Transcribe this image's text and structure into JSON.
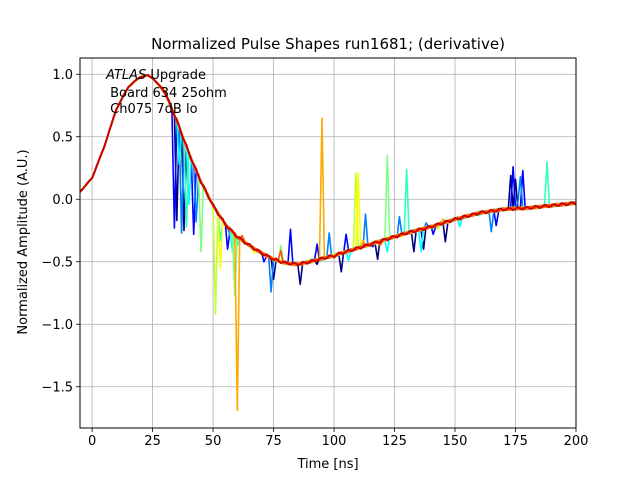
{
  "chart_data": {
    "type": "line",
    "title": "Normalized Pulse Shapes run1681; (derivative)",
    "xlabel": "Time [ns]",
    "ylabel": "Normalized Amplitude (A.U.)",
    "xlim": [
      -5,
      200
    ],
    "ylim": [
      -1.83,
      1.13
    ],
    "xticks": [
      0,
      25,
      50,
      75,
      100,
      125,
      150,
      175,
      200
    ],
    "yticks": [
      -1.5,
      -1.0,
      -0.5,
      0.0,
      0.5,
      1.0
    ],
    "xtick_labels": [
      "0",
      "25",
      "50",
      "75",
      "100",
      "125",
      "150",
      "175",
      "200"
    ],
    "ytick_labels": [
      "−1.5",
      "−1.0",
      "−0.5",
      "0.0",
      "0.5",
      "1.0"
    ],
    "grid": true,
    "annotation": {
      "line1_italic": "ATLAS",
      "line1_rest": " Upgrade",
      "line2": " Board 634 25ohm",
      "line3": " Ch075 7dB lo"
    },
    "base_shape": {
      "x": [
        -5,
        0,
        5,
        10,
        15,
        20,
        23,
        25,
        30,
        35,
        40,
        45,
        50,
        55,
        60,
        65,
        70,
        75,
        80,
        85,
        90,
        100,
        110,
        120,
        130,
        140,
        150,
        160,
        170,
        180,
        190,
        200
      ],
      "y": [
        0.06,
        0.17,
        0.42,
        0.72,
        0.9,
        0.98,
        0.99,
        0.97,
        0.86,
        0.63,
        0.37,
        0.14,
        -0.05,
        -0.2,
        -0.3,
        -0.37,
        -0.43,
        -0.48,
        -0.51,
        -0.52,
        -0.5,
        -0.45,
        -0.39,
        -0.33,
        -0.27,
        -0.22,
        -0.16,
        -0.11,
        -0.08,
        -0.07,
        -0.05,
        -0.03
      ]
    },
    "series": [
      {
        "color": "#00007f",
        "spikes": [
          [
            35,
            -0.17
          ],
          [
            38,
            -0.25
          ],
          [
            60,
            -0.32
          ],
          [
            68,
            -0.4
          ],
          [
            75,
            -0.64
          ],
          [
            80,
            -0.52
          ],
          [
            86,
            -0.68
          ],
          [
            93,
            -0.52
          ],
          [
            103,
            -0.58
          ],
          [
            118,
            -0.48
          ],
          [
            133,
            -0.42
          ],
          [
            137,
            -0.4
          ],
          [
            146,
            -0.34
          ],
          [
            173,
            0.19
          ],
          [
            175,
            0.16
          ]
        ]
      },
      {
        "color": "#0000ff",
        "spikes": [
          [
            34,
            -0.23
          ],
          [
            42,
            -0.28
          ],
          [
            56,
            -0.4
          ],
          [
            71,
            -0.5
          ],
          [
            82,
            -0.24
          ],
          [
            93,
            -0.36
          ],
          [
            105,
            -0.28
          ],
          [
            116,
            -0.38
          ],
          [
            141,
            -0.28
          ],
          [
            167,
            -0.21
          ],
          [
            174,
            0.26
          ],
          [
            178,
            0.23
          ]
        ]
      },
      {
        "color": "#007fff",
        "spikes": [
          [
            37,
            -0.27
          ],
          [
            43,
            -0.18
          ],
          [
            57,
            -0.29
          ],
          [
            74,
            -0.74
          ],
          [
            98,
            -0.27
          ],
          [
            113,
            -0.12
          ],
          [
            127,
            -0.14
          ],
          [
            138,
            -0.19
          ],
          [
            165,
            -0.26
          ],
          [
            176,
            -0.02
          ],
          [
            177,
            0.18
          ]
        ]
      },
      {
        "color": "#00ffff",
        "spikes": [
          [
            36,
            0.28
          ],
          [
            40,
            -0.04
          ],
          [
            53,
            -0.33
          ],
          [
            60,
            -0.37
          ],
          [
            81,
            -0.51
          ],
          [
            106,
            -0.49
          ],
          [
            122,
            -0.42
          ],
          [
            136,
            -0.42
          ],
          [
            152,
            -0.22
          ],
          [
            181,
            -0.07
          ]
        ]
      },
      {
        "color": "#32ffc3",
        "spikes": [
          [
            39,
            -0.22
          ],
          [
            58,
            -0.42
          ],
          [
            130,
            0.24
          ],
          [
            160,
            -0.13
          ],
          [
            188,
            0.3
          ]
        ]
      },
      {
        "color": "#7fff7f",
        "spikes": [
          [
            45,
            -0.42
          ],
          [
            59,
            -0.77
          ],
          [
            78,
            -0.37
          ],
          [
            90,
            -0.48
          ],
          [
            122,
            0.35
          ]
        ]
      },
      {
        "color": "#c3ff32",
        "spikes": [
          [
            51,
            -0.92
          ],
          [
            64,
            -0.36
          ],
          [
            109,
            0.21
          ],
          [
            143,
            -0.24
          ]
        ]
      },
      {
        "color": "#ffff00",
        "spikes": [
          [
            53,
            -0.55
          ],
          [
            67,
            -0.43
          ],
          [
            110,
            0.21
          ],
          [
            128,
            -0.3
          ],
          [
            162,
            -0.11
          ]
        ]
      },
      {
        "color": "#ffaa00",
        "spikes": [
          [
            60,
            -1.69
          ],
          [
            95,
            0.65
          ],
          [
            112,
            -0.33
          ],
          [
            145,
            -0.16
          ],
          [
            160,
            -0.1
          ]
        ]
      },
      {
        "color": "#ff5500",
        "spikes": [
          [
            62,
            -0.29
          ],
          [
            78,
            -0.41
          ],
          [
            100,
            -0.47
          ],
          [
            119,
            -0.37
          ],
          [
            138,
            -0.24
          ]
        ]
      },
      {
        "color": "#cc0000",
        "spikes": []
      }
    ]
  }
}
